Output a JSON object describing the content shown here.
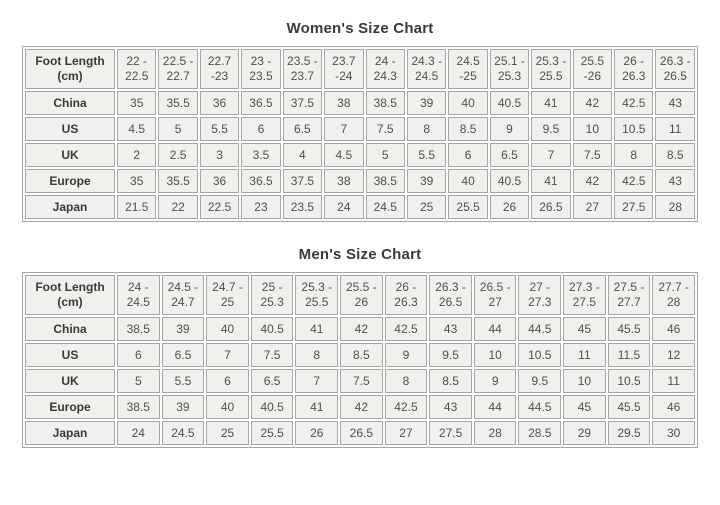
{
  "colors": {
    "page_background": "#ffffff",
    "cell_background": "#f1f0ec",
    "cell_border": "#a5a5a5",
    "value_text": "#514f4b",
    "label_text": "#3b3936",
    "title_text": "#3a3a3a"
  },
  "chart_data": [
    {
      "type": "table",
      "title": "Women's Size Chart",
      "corner_label": "Foot Length (cm)",
      "columns": [
        "22 - 22.5",
        "22.5 - 22.7",
        "22.7 -23",
        "23 - 23.5",
        "23.5 - 23.7",
        "23.7 -24",
        "24 - 24.3",
        "24.3 - 24.5",
        "24.5 -25",
        "25.1 - 25.3",
        "25.3 - 25.5",
        "25.5 -26",
        "26 - 26.3",
        "26.3 - 26.5"
      ],
      "rows": [
        {
          "label": "China",
          "values": [
            35,
            35.5,
            36,
            36.5,
            37.5,
            38,
            38.5,
            39,
            40,
            40.5,
            41,
            42,
            42.5,
            43
          ]
        },
        {
          "label": "US",
          "values": [
            4.5,
            5,
            5.5,
            6,
            6.5,
            7,
            7.5,
            8,
            8.5,
            9,
            9.5,
            10,
            10.5,
            11
          ]
        },
        {
          "label": "UK",
          "values": [
            2,
            2.5,
            3,
            3.5,
            4,
            4.5,
            5,
            5.5,
            6,
            6.5,
            7,
            7.5,
            8,
            8.5
          ]
        },
        {
          "label": "Europe",
          "values": [
            35,
            35.5,
            36,
            36.5,
            37.5,
            38,
            38.5,
            39,
            40,
            40.5,
            41,
            42,
            42.5,
            43
          ]
        },
        {
          "label": "Japan",
          "values": [
            21.5,
            22,
            22.5,
            23,
            23.5,
            24,
            24.5,
            25,
            25.5,
            26,
            26.5,
            27,
            27.5,
            28
          ]
        }
      ]
    },
    {
      "type": "table",
      "title": "Men's Size Chart",
      "corner_label": "Foot Length (cm)",
      "columns": [
        "24 - 24.5",
        "24.5 - 24.7",
        "24.7 - 25",
        "25 - 25.3",
        "25.3 - 25.5",
        "25.5 - 26",
        "26 - 26.3",
        "26.3 - 26.5",
        "26.5 - 27",
        "27 - 27.3",
        "27.3 - 27.5",
        "27.5 - 27.7",
        "27.7 - 28"
      ],
      "rows": [
        {
          "label": "China",
          "values": [
            38.5,
            39,
            40,
            40.5,
            41,
            42,
            42.5,
            43,
            44,
            44.5,
            45,
            45.5,
            46
          ]
        },
        {
          "label": "US",
          "values": [
            6,
            6.5,
            7,
            7.5,
            8,
            8.5,
            9,
            9.5,
            10,
            10.5,
            11,
            11.5,
            12
          ]
        },
        {
          "label": "UK",
          "values": [
            5,
            5.5,
            6,
            6.5,
            7,
            7.5,
            8,
            8.5,
            9,
            9.5,
            10,
            10.5,
            11
          ]
        },
        {
          "label": "Europe",
          "values": [
            38.5,
            39,
            40,
            40.5,
            41,
            42,
            42.5,
            43,
            44,
            44.5,
            45,
            45.5,
            46
          ]
        },
        {
          "label": "Japan",
          "values": [
            24,
            24.5,
            25,
            25.5,
            26,
            26.5,
            27,
            27.5,
            28,
            28.5,
            29,
            29.5,
            30
          ]
        }
      ]
    }
  ]
}
